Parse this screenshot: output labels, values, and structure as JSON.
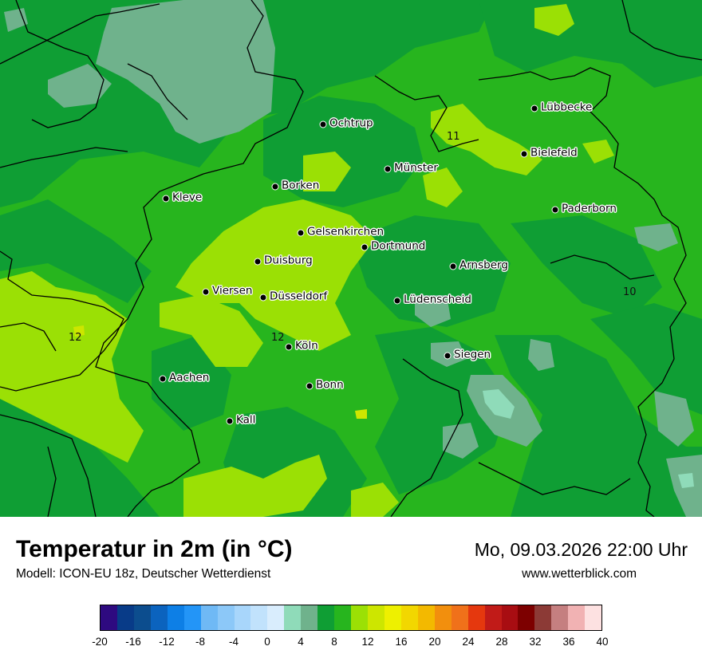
{
  "map": {
    "cities": [
      {
        "name": "Ochtrup"
      },
      {
        "name": "Lübbecke"
      },
      {
        "name": "Bielefeld"
      },
      {
        "name": "Münster"
      },
      {
        "name": "Borken"
      },
      {
        "name": "Kleve"
      },
      {
        "name": "Paderborn"
      },
      {
        "name": "Gelsenkirchen"
      },
      {
        "name": "Dortmund"
      },
      {
        "name": "Duisburg"
      },
      {
        "name": "Arnsberg"
      },
      {
        "name": "Viersen"
      },
      {
        "name": "Düsseldorf"
      },
      {
        "name": "Lüdenscheid"
      },
      {
        "name": "Köln"
      },
      {
        "name": "Siegen"
      },
      {
        "name": "Aachen"
      },
      {
        "name": "Bonn"
      },
      {
        "name": "Kall"
      }
    ],
    "contour_labels": [
      {
        "text": "11"
      },
      {
        "text": "10"
      },
      {
        "text": "12"
      },
      {
        "text": "12"
      }
    ],
    "colors": {
      "t4": "#8fdbb9",
      "t6": "#6fb28c",
      "t8": "#0f9e34",
      "t10": "#27b51e",
      "t12": "#9be005",
      "t14": "#cde600"
    }
  },
  "footer": {
    "title": "Temperatur in 2m (in °C)",
    "model": "Modell: ICON-EU 18z, Deutscher Wetterdienst",
    "datetime": "Mo, 09.03.2026 22:00 Uhr",
    "website": "www.wetterblick.com"
  },
  "legend": {
    "colors": [
      "#2e0a80",
      "#083b88",
      "#0c4d8e",
      "#0b63be",
      "#0d7fe6",
      "#2395f7",
      "#6fb9f5",
      "#8cc8f8",
      "#a8d6fb",
      "#c1e2fc",
      "#d9edfd",
      "#8fdbb9",
      "#6fb28c",
      "#0f9e34",
      "#27b51e",
      "#9be005",
      "#cde600",
      "#eef000",
      "#f2d700",
      "#f3b900",
      "#f28f0d",
      "#f0711a",
      "#e5380e",
      "#c11b18",
      "#a80d12",
      "#7d0000",
      "#8c3a36",
      "#c57f80",
      "#f1b2b3",
      "#fde1e1"
    ],
    "ticks": [
      "-20",
      "-16",
      "-12",
      "-8",
      "-4",
      "0",
      "4",
      "8",
      "12",
      "16",
      "20",
      "24",
      "28",
      "32",
      "36",
      "40"
    ]
  }
}
